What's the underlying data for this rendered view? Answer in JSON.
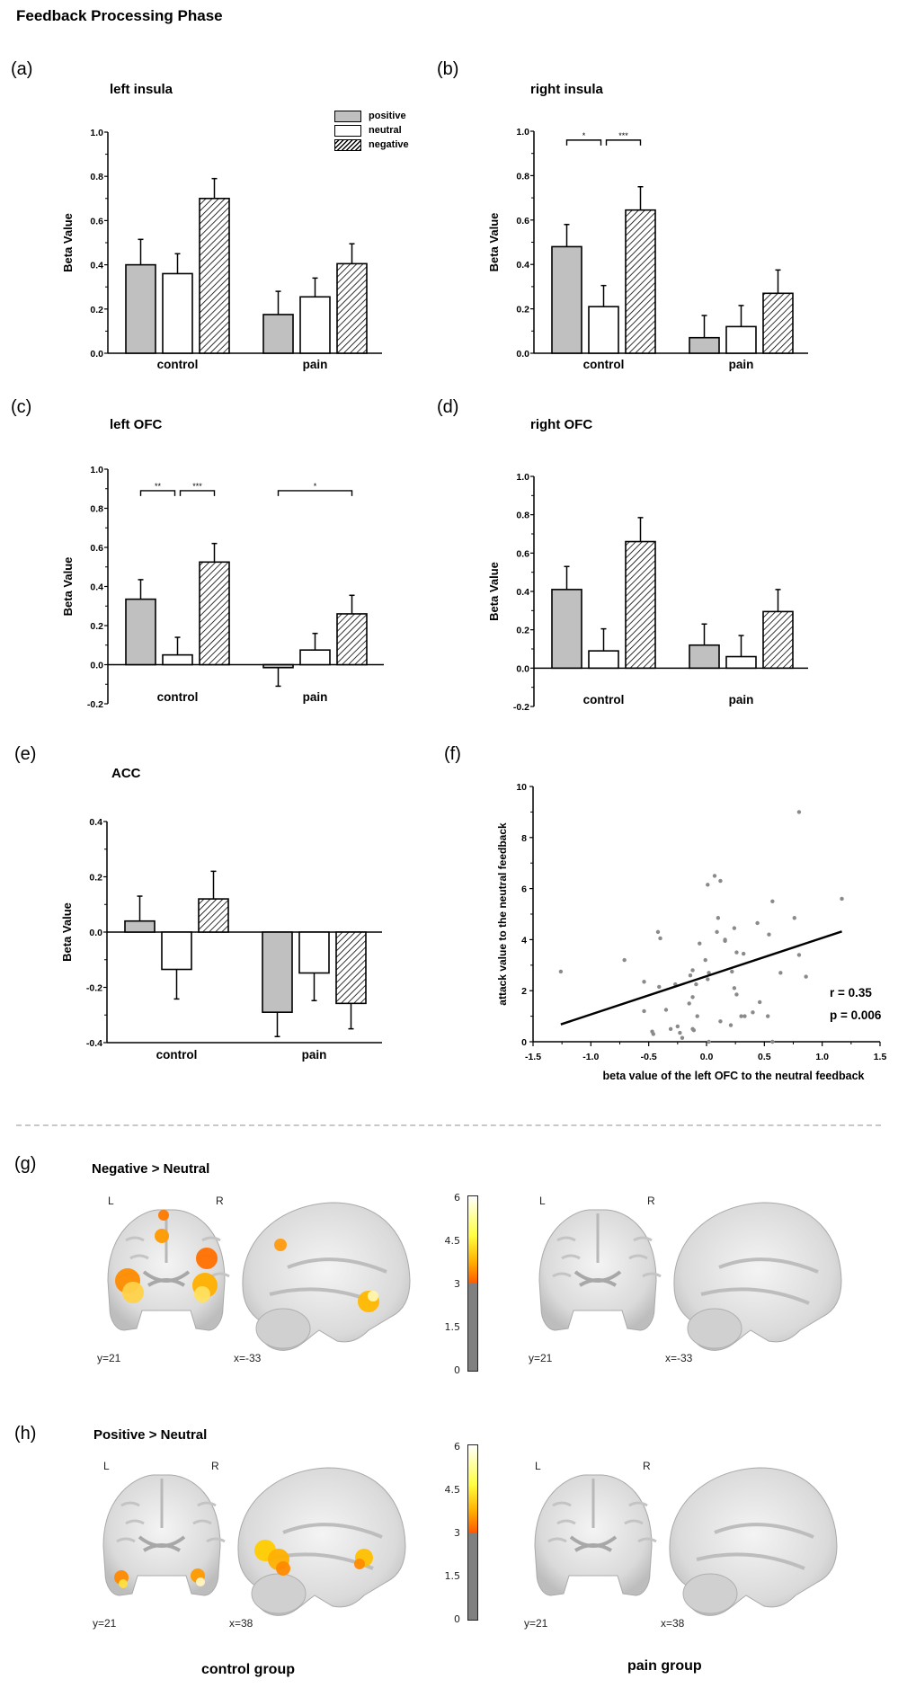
{
  "figure": {
    "title": "Feedback Processing  Phase",
    "divider": "dashed-separator",
    "colors": {
      "positive_fill": "#c0c0c0",
      "neutral_fill": "#ffffff",
      "negative_fill": "hatched",
      "scatter_point": "#888888",
      "activation_low": "#ff5a00",
      "activation_high": "#ffffff",
      "colorbar_gray": "#808080"
    }
  },
  "legend": {
    "placement": "top-right of panel (a)",
    "items": [
      {
        "label": "positive",
        "style": "gray"
      },
      {
        "label": "neutral",
        "style": "white"
      },
      {
        "label": "negative",
        "style": "hatched"
      }
    ]
  },
  "chart_data": [
    {
      "id": "a",
      "panel_label": "(a)",
      "type": "bar",
      "title": "left insula",
      "ylabel": "Beta Value",
      "xlabel": "",
      "categories": [
        "control",
        "pain"
      ],
      "ylim": [
        0.0,
        1.0
      ],
      "yticks": [
        0.0,
        0.2,
        0.4,
        0.6,
        0.8,
        1.0
      ],
      "ytick_labels": [
        "0.0",
        "0.2",
        "0.4",
        "0.6",
        "0.8",
        "1.0"
      ],
      "series": [
        {
          "name": "positive",
          "values": [
            0.4,
            0.175
          ],
          "sem": [
            0.115,
            0.105
          ]
        },
        {
          "name": "neutral",
          "values": [
            0.36,
            0.255
          ],
          "sem": [
            0.09,
            0.085
          ]
        },
        {
          "name": "negative",
          "values": [
            0.7,
            0.405
          ],
          "sem": [
            0.09,
            0.09
          ]
        }
      ],
      "significance": [],
      "legend": true
    },
    {
      "id": "b",
      "panel_label": "(b)",
      "type": "bar",
      "title": "right insula",
      "ylabel": "Beta Value",
      "xlabel": "",
      "categories": [
        "control",
        "pain"
      ],
      "ylim": [
        0.0,
        1.0
      ],
      "yticks": [
        0.0,
        0.2,
        0.4,
        0.6,
        0.8,
        1.0
      ],
      "ytick_labels": [
        "0.0",
        "0.2",
        "0.4",
        "0.6",
        "0.8",
        "1.0"
      ],
      "series": [
        {
          "name": "positive",
          "values": [
            0.48,
            0.07
          ],
          "sem": [
            0.1,
            0.1
          ]
        },
        {
          "name": "neutral",
          "values": [
            0.21,
            0.12
          ],
          "sem": [
            0.095,
            0.095
          ]
        },
        {
          "name": "negative",
          "values": [
            0.645,
            0.27
          ],
          "sem": [
            0.105,
            0.105
          ]
        }
      ],
      "significance": [
        {
          "group": 0,
          "from": 0,
          "to": 1,
          "label": "*",
          "level": 0.96
        },
        {
          "group": 0,
          "from": 1,
          "to": 2,
          "label": "***",
          "level": 0.96
        }
      ],
      "legend": false
    },
    {
      "id": "c",
      "panel_label": "(c)",
      "type": "bar",
      "title": "left OFC",
      "ylabel": "Beta Value",
      "xlabel": "",
      "categories": [
        "control",
        "pain"
      ],
      "ylim": [
        -0.2,
        1.0
      ],
      "yticks": [
        -0.2,
        0.0,
        0.2,
        0.4,
        0.6,
        0.8,
        1.0
      ],
      "ytick_labels": [
        "-0.2",
        "0.0",
        "0.2",
        "0.4",
        "0.6",
        "0.8",
        "1.0"
      ],
      "series": [
        {
          "name": "positive",
          "values": [
            0.335,
            -0.015
          ],
          "sem": [
            0.1,
            0.095
          ]
        },
        {
          "name": "neutral",
          "values": [
            0.05,
            0.075
          ],
          "sem": [
            0.09,
            0.085
          ]
        },
        {
          "name": "negative",
          "values": [
            0.525,
            0.26
          ],
          "sem": [
            0.095,
            0.095
          ]
        }
      ],
      "significance": [
        {
          "group": 0,
          "from": 0,
          "to": 1,
          "label": "**",
          "level": 0.89
        },
        {
          "group": 0,
          "from": 1,
          "to": 2,
          "label": "***",
          "level": 0.89
        },
        {
          "group": 1,
          "from": 0,
          "to": 2,
          "label": "*",
          "level": 0.89
        }
      ],
      "legend": false
    },
    {
      "id": "d",
      "panel_label": "(d)",
      "type": "bar",
      "title": "right OFC",
      "ylabel": "Beta Value",
      "xlabel": "",
      "categories": [
        "control",
        "pain"
      ],
      "ylim": [
        -0.2,
        1.0
      ],
      "yticks": [
        -0.2,
        0.0,
        0.2,
        0.4,
        0.6,
        0.8,
        1.0
      ],
      "ytick_labels": [
        "-0.2",
        "0.0",
        "0.2",
        "0.4",
        "0.6",
        "0.8",
        "1.0"
      ],
      "series": [
        {
          "name": "positive",
          "values": [
            0.41,
            0.12
          ],
          "sem": [
            0.12,
            0.11
          ]
        },
        {
          "name": "neutral",
          "values": [
            0.09,
            0.06
          ],
          "sem": [
            0.115,
            0.11
          ]
        },
        {
          "name": "negative",
          "values": [
            0.66,
            0.295
          ],
          "sem": [
            0.125,
            0.115
          ]
        }
      ],
      "significance": [],
      "legend": false
    },
    {
      "id": "e",
      "panel_label": "(e)",
      "type": "bar",
      "title": "ACC",
      "ylabel": "Beta Value",
      "xlabel": "",
      "categories": [
        "control",
        "pain"
      ],
      "ylim": [
        -0.4,
        0.4
      ],
      "yticks": [
        -0.4,
        -0.2,
        0.0,
        0.2,
        0.4
      ],
      "ytick_labels": [
        "-0.4",
        "-0.2",
        "0.0",
        "0.2",
        "0.4"
      ],
      "series": [
        {
          "name": "positive",
          "values": [
            0.04,
            -0.29
          ],
          "sem": [
            0.09,
            0.088
          ]
        },
        {
          "name": "neutral",
          "values": [
            -0.135,
            -0.148
          ],
          "sem": [
            0.107,
            0.1
          ]
        },
        {
          "name": "negative",
          "values": [
            0.12,
            -0.258
          ],
          "sem": [
            0.1,
            0.092
          ]
        }
      ],
      "significance": [],
      "legend": false
    },
    {
      "id": "f",
      "panel_label": "(f)",
      "type": "scatter",
      "title": "",
      "xlabel": "beta value of the left OFC to the neutral feedback",
      "ylabel": "attack value to the neutral feedback",
      "xlim": [
        -1.5,
        1.5
      ],
      "ylim": [
        0,
        10
      ],
      "xticks": [
        -1.5,
        -1.0,
        -0.5,
        0.0,
        0.5,
        1.0,
        1.5
      ],
      "xtick_labels": [
        "-1.5",
        "-1.0",
        "-0.5",
        "0.0",
        "0.5",
        "1.0",
        "1.5"
      ],
      "yticks": [
        0,
        2,
        4,
        6,
        8,
        10
      ],
      "ytick_labels": [
        "0",
        "2",
        "4",
        "6",
        "8",
        "10"
      ],
      "points": [
        [
          -1.26,
          2.75
        ],
        [
          -0.71,
          3.2
        ],
        [
          -0.54,
          2.35
        ],
        [
          -0.54,
          1.2
        ],
        [
          -0.42,
          4.3
        ],
        [
          -0.4,
          4.05
        ],
        [
          -0.41,
          2.15
        ],
        [
          -0.35,
          1.25
        ],
        [
          -0.47,
          0.4
        ],
        [
          -0.46,
          0.3
        ],
        [
          -0.31,
          0.5
        ],
        [
          -0.27,
          2.25
        ],
        [
          -0.25,
          0.6
        ],
        [
          -0.23,
          0.35
        ],
        [
          -0.21,
          0.15
        ],
        [
          -0.15,
          1.5
        ],
        [
          -0.14,
          2.6
        ],
        [
          -0.12,
          2.8
        ],
        [
          -0.12,
          1.75
        ],
        [
          -0.12,
          0.5
        ],
        [
          -0.11,
          0.45
        ],
        [
          -0.09,
          2.25
        ],
        [
          -0.08,
          1.0
        ],
        [
          -0.06,
          3.85
        ],
        [
          -0.01,
          3.2
        ],
        [
          0.01,
          6.15
        ],
        [
          0.01,
          2.45
        ],
        [
          0.02,
          2.7
        ],
        [
          0.02,
          0.0
        ],
        [
          0.07,
          6.5
        ],
        [
          0.09,
          4.3
        ],
        [
          0.1,
          4.85
        ],
        [
          0.12,
          6.3
        ],
        [
          0.12,
          0.8
        ],
        [
          0.16,
          4.0
        ],
        [
          0.16,
          3.95
        ],
        [
          0.22,
          2.75
        ],
        [
          0.21,
          0.65
        ],
        [
          0.24,
          4.45
        ],
        [
          0.24,
          2.1
        ],
        [
          0.26,
          3.5
        ],
        [
          0.26,
          1.85
        ],
        [
          0.3,
          1.0
        ],
        [
          0.32,
          3.45
        ],
        [
          0.33,
          1.0
        ],
        [
          0.4,
          1.15
        ],
        [
          0.44,
          4.65
        ],
        [
          0.46,
          1.55
        ],
        [
          0.53,
          1.0
        ],
        [
          0.54,
          4.2
        ],
        [
          0.57,
          5.5
        ],
        [
          0.57,
          0.0
        ],
        [
          0.64,
          2.7
        ],
        [
          0.76,
          4.85
        ],
        [
          0.8,
          3.4
        ],
        [
          0.8,
          9.0
        ],
        [
          0.86,
          2.55
        ],
        [
          1.17,
          5.6
        ]
      ],
      "fit_line": {
        "x": [
          -1.26,
          1.17
        ],
        "y": [
          0.68,
          4.32
        ]
      },
      "annotations": [
        "r = 0.35",
        "p = 0.006"
      ],
      "grid": false
    }
  ],
  "brain_panels": [
    {
      "panel_label": "(g)",
      "contrast": "Negative > Neutral",
      "control": {
        "coronal_label": "y=21",
        "sagittal_label": "x=-33",
        "left": "L",
        "right": "R",
        "has_activation": true
      },
      "pain": {
        "coronal_label": "y=21",
        "sagittal_label": "x=-33",
        "left": "L",
        "right": "R",
        "has_activation": false
      },
      "colorbar": {
        "ticks": [
          "6",
          "4.5",
          "3",
          "1.5",
          "0"
        ],
        "threshold": 3,
        "max": 6
      }
    },
    {
      "panel_label": "(h)",
      "contrast": "Positive > Neutral",
      "control": {
        "coronal_label": "y=21",
        "sagittal_label": "x=38",
        "left": "L",
        "right": "R",
        "has_activation": true
      },
      "pain": {
        "coronal_label": "y=21",
        "sagittal_label": "x=38",
        "left": "L",
        "right": "R",
        "has_activation": false
      },
      "colorbar": {
        "ticks": [
          "6",
          "4.5",
          "3",
          "1.5",
          "0"
        ],
        "threshold": 3,
        "max": 6
      }
    }
  ],
  "group_labels": {
    "control": "control group",
    "pain": "pain group"
  }
}
